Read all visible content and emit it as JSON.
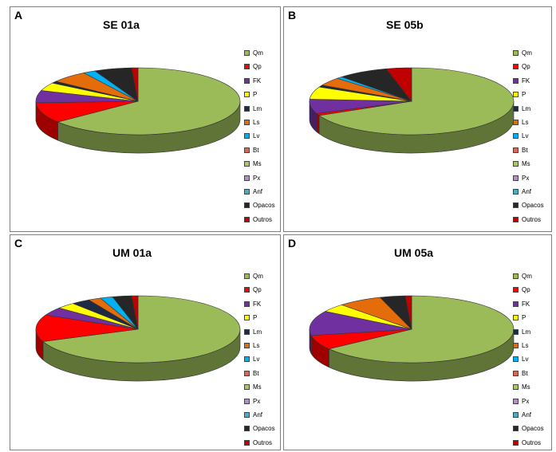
{
  "chart_data": [
    {
      "type": "pie",
      "panel": "A",
      "title": "SE 01a",
      "categories": [
        "Qm",
        "Qp",
        "FK",
        "P",
        "Lm",
        "Ls",
        "Lv",
        "Bt",
        "Ms",
        "Px",
        "Anf",
        "Opacos",
        "Outros"
      ],
      "values": [
        65,
        10,
        6,
        4,
        1,
        6,
        2,
        0,
        0,
        0,
        0,
        6,
        1
      ]
    },
    {
      "type": "pie",
      "panel": "B",
      "title": "SE 05b",
      "categories": [
        "Qm",
        "Qp",
        "FK",
        "P",
        "Lm",
        "Ls",
        "Lv",
        "Bt",
        "Ms",
        "Px",
        "Anf",
        "Opacos",
        "Outros"
      ],
      "values": [
        68,
        1,
        7,
        6,
        1,
        4,
        1,
        0,
        0,
        0,
        0,
        8,
        4
      ]
    },
    {
      "type": "pie",
      "panel": "C",
      "title": "UM 01a",
      "categories": [
        "Qm",
        "Qp",
        "FK",
        "P",
        "Lm",
        "Ls",
        "Lv",
        "Bt",
        "Ms",
        "Px",
        "Anf",
        "Opacos",
        "Outros"
      ],
      "values": [
        69,
        13,
        4,
        3,
        3,
        2,
        2,
        0,
        0,
        0,
        0,
        3,
        1
      ]
    },
    {
      "type": "pie",
      "panel": "D",
      "title": "UM 05a",
      "categories": [
        "Qm",
        "Qp",
        "FK",
        "P",
        "Lm",
        "Ls",
        "Lv",
        "Bt",
        "Ms",
        "Px",
        "Anf",
        "Opacos",
        "Outros"
      ],
      "values": [
        65,
        7,
        12,
        4,
        0,
        7,
        0,
        0,
        0,
        0,
        0,
        4,
        1
      ]
    }
  ],
  "colors": [
    "#9bbb59",
    "#ff0000",
    "#7030a0",
    "#ffff00",
    "#1f2a44",
    "#e46c0a",
    "#00b0f0",
    "#d9665a",
    "#a8c95c",
    "#b58bc9",
    "#4bacc6",
    "#262626",
    "#c00000"
  ]
}
